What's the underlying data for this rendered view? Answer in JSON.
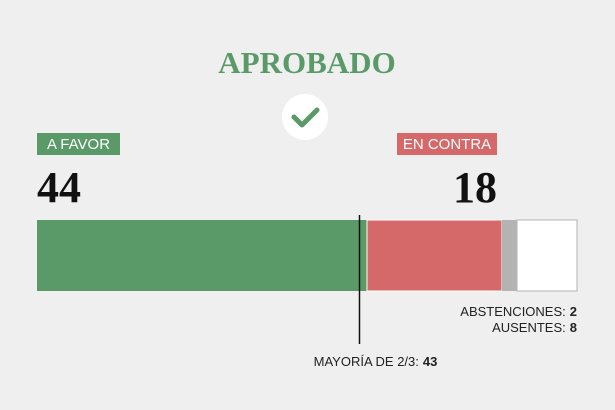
{
  "chart_data": {
    "type": "stacked-bar",
    "title": "APROBADO",
    "series": [
      {
        "name": "A FAVOR",
        "color": "#5a9a68",
        "values": [
          44
        ]
      },
      {
        "name": "EN CONTRA",
        "color": "#d5696a",
        "values": [
          18
        ]
      },
      {
        "name": "ABSTENCIONES:",
        "color": "#b3b3b3",
        "values": [
          2
        ]
      },
      {
        "name": "AUSENTES:",
        "color": "#ffffff",
        "values": [
          8
        ]
      }
    ],
    "threshold": {
      "label": "MAYORÍA DE 2/3:",
      "value": 43
    }
  }
}
